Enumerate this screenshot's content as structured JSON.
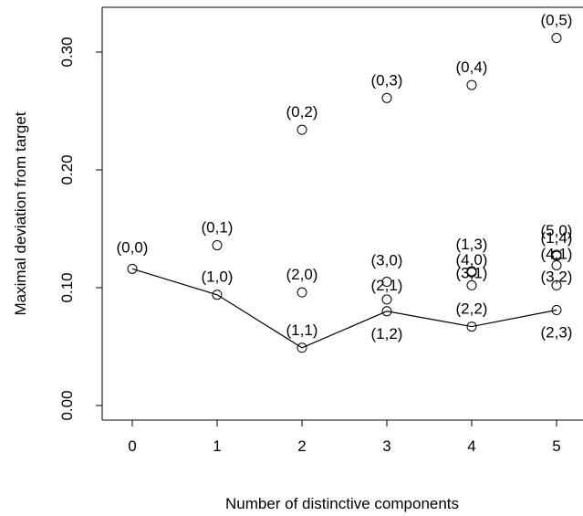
{
  "chart_data": {
    "type": "scatter",
    "title": "",
    "xlabel": "Number of distinctive components",
    "ylabel": "Maximal deviation from target",
    "xlim": [
      -0.15,
      5.15
    ],
    "ylim": [
      -0.005,
      0.36
    ],
    "x_ticks": [
      0,
      1,
      2,
      3,
      4,
      5
    ],
    "x_tick_labels": [
      "0",
      "1",
      "2",
      "3",
      "4",
      "5"
    ],
    "y_ticks": [
      0.0,
      0.1,
      0.2,
      0.3
    ],
    "y_tick_labels": [
      "0.00",
      "0.10",
      "0.20",
      "0.30"
    ],
    "grid": false,
    "points": [
      {
        "label": "(0,0)",
        "x": 0,
        "y": 0.116
      },
      {
        "label": "(1,0)",
        "x": 1,
        "y": 0.094
      },
      {
        "label": "(0,1)",
        "x": 1,
        "y": 0.136
      },
      {
        "label": "(2,0)",
        "x": 2,
        "y": 0.096
      },
      {
        "label": "(1,1)",
        "x": 2,
        "y": 0.049
      },
      {
        "label": "(0,2)",
        "x": 2,
        "y": 0.234
      },
      {
        "label": "(3,0)",
        "x": 3,
        "y": 0.105
      },
      {
        "label": "(2,1)",
        "x": 3,
        "y": 0.09
      },
      {
        "label": "(1,2)",
        "x": 3,
        "y": 0.08
      },
      {
        "label": "(0,3)",
        "x": 3,
        "y": 0.261
      },
      {
        "label": "(4,0)",
        "x": 4,
        "y": 0.114
      },
      {
        "label": "(1,3)",
        "x": 4,
        "y": 0.113
      },
      {
        "label": "(3,1)",
        "x": 4,
        "y": 0.102
      },
      {
        "label": "(2,2)",
        "x": 4,
        "y": 0.067
      },
      {
        "label": "(0,4)",
        "x": 4,
        "y": 0.272
      },
      {
        "label": "(5,0)",
        "x": 5,
        "y": 0.128
      },
      {
        "label": "(1,4)",
        "x": 5,
        "y": 0.127
      },
      {
        "label": "(4,1)",
        "x": 5,
        "y": 0.119
      },
      {
        "label": "(3,2)",
        "x": 5,
        "y": 0.102
      },
      {
        "label": "(2,3)",
        "x": 5,
        "y": 0.081
      },
      {
        "label": "(0,5)",
        "x": 5,
        "y": 0.312
      }
    ],
    "line": {
      "x": [
        0,
        1,
        2,
        3,
        4,
        5
      ],
      "y": [
        0.116,
        0.094,
        0.049,
        0.08,
        0.067,
        0.081
      ]
    }
  }
}
